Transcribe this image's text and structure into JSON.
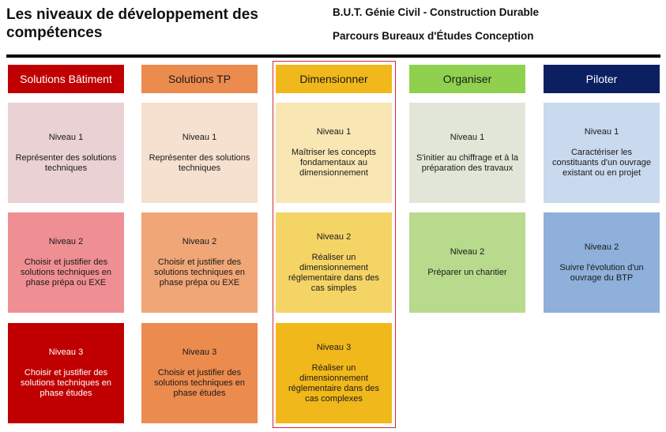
{
  "title": "Les niveaux de développement des compétences",
  "subtitle_line1": "B.U.T. Génie Civil - Construction Durable",
  "subtitle_line2": "Parcours Bureaux d'Études Conception",
  "columns": [
    {
      "header": "Solutions Bâtiment",
      "colors": {
        "header_bg": "#c00000",
        "header_fg": "#ffffff"
      },
      "levels": [
        {
          "level": "Niveau 1",
          "text": "Représenter des solutions techniques",
          "bg": "#ead1d4",
          "fg": "#1a1a1a"
        },
        {
          "level": "Niveau 2",
          "text": "Choisir et justifier des solutions techniques en phase prépa ou EXE",
          "bg": "#ef8f93",
          "fg": "#1a1a1a"
        },
        {
          "level": "Niveau 3",
          "text": "Choisir et justifier des solutions techniques en phase études",
          "bg": "#c00000",
          "fg": "#ffffff"
        }
      ]
    },
    {
      "header": "Solutions TP",
      "colors": {
        "header_bg": "#ec8b4e",
        "header_fg": "#1a1a1a"
      },
      "levels": [
        {
          "level": "Niveau 1",
          "text": "Représenter des solutions techniques",
          "bg": "#f6e0cf",
          "fg": "#1a1a1a"
        },
        {
          "level": "Niveau 2",
          "text": "Choisir et justifier des solutions techniques en phase prépa ou EXE",
          "bg": "#f0a677",
          "fg": "#1a1a1a"
        },
        {
          "level": "Niveau 3",
          "text": "Choisir et justifier des solutions techniques en phase études",
          "bg": "#ec8b4e",
          "fg": "#1a1a1a"
        }
      ]
    },
    {
      "header": "Dimensionner",
      "colors": {
        "header_bg": "#f1b81b",
        "header_fg": "#1a1a1a"
      },
      "levels": [
        {
          "level": "Niveau 1",
          "text": "Maîtriser les concepts fondamentaux au dimensionnement",
          "bg": "#f8e6b3",
          "fg": "#1a1a1a"
        },
        {
          "level": "Niveau 2",
          "text": "Réaliser un dimensionnement réglementaire dans des cas simples",
          "bg": "#f5d466",
          "fg": "#1a1a1a"
        },
        {
          "level": "Niveau 3",
          "text": "Réaliser un dimensionnement réglementaire dans des cas complexes",
          "bg": "#f1b81b",
          "fg": "#1a1a1a"
        }
      ]
    },
    {
      "header": "Organiser",
      "colors": {
        "header_bg": "#8fd14f",
        "header_fg": "#1a1a1a"
      },
      "levels": [
        {
          "level": "Niveau 1",
          "text": "S'initier au chiffrage et à la préparation des travaux",
          "bg": "#e2e6d8",
          "fg": "#1a1a1a"
        },
        {
          "level": "Niveau 2",
          "text": "Préparer un chantier",
          "bg": "#b7da8c",
          "fg": "#1a1a1a"
        }
      ]
    },
    {
      "header": "Piloter",
      "colors": {
        "header_bg": "#0c1f60",
        "header_fg": "#ffffff"
      },
      "levels": [
        {
          "level": "Niveau 1",
          "text": "Caractériser les constituants d'un ouvrage existant ou en projet",
          "bg": "#c9d9ee",
          "fg": "#1a1a1a"
        },
        {
          "level": "Niveau 2",
          "text": "Suivre l'évolution d'un ouvrage du BTP",
          "bg": "#8eb0da",
          "fg": "#1a1a1a"
        }
      ]
    }
  ]
}
